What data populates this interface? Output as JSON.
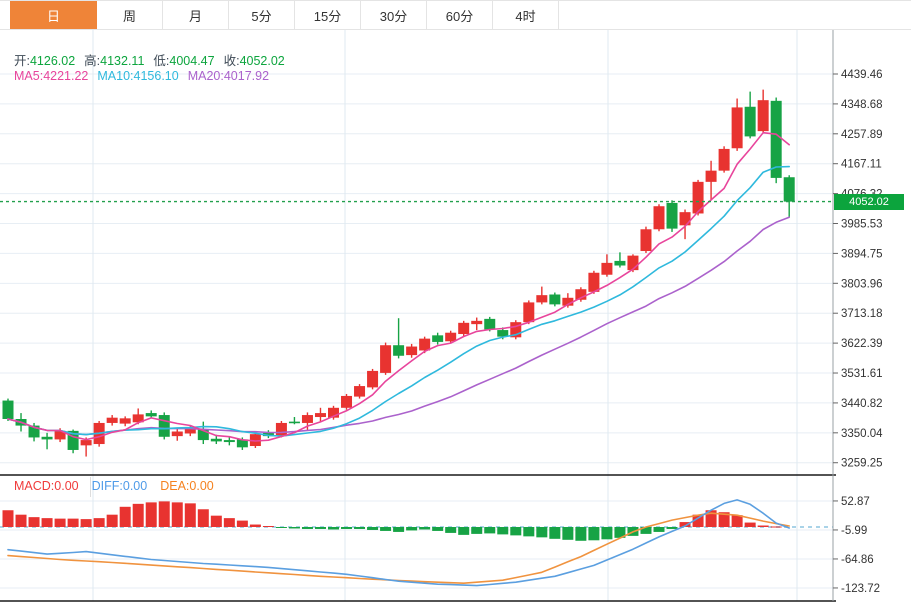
{
  "tabbar": {
    "tabs": [
      {
        "id": "day",
        "label": "日",
        "active": true
      },
      {
        "id": "week",
        "label": "周",
        "active": false
      },
      {
        "id": "month",
        "label": "月",
        "active": false
      },
      {
        "id": "5min",
        "label": "5分",
        "active": false
      },
      {
        "id": "15min",
        "label": "15分",
        "active": false
      },
      {
        "id": "30min",
        "label": "30分",
        "active": false
      },
      {
        "id": "60min",
        "label": "60分",
        "active": false
      },
      {
        "id": "4hour",
        "label": "4时",
        "active": false
      }
    ],
    "active_bg": "#ef8438"
  },
  "ohlc_info": {
    "label_color": "#3e4a56",
    "value_color": "#0da53e",
    "items": [
      {
        "label": "开:",
        "value": "4126.02"
      },
      {
        "label": "高:",
        "value": "4132.11"
      },
      {
        "label": "低:",
        "value": "4004.47"
      },
      {
        "label": "收:",
        "value": "4052.02"
      }
    ]
  },
  "ma_info": {
    "items": [
      {
        "label": "MA5:",
        "value": "4221.22",
        "color": "#e8459c"
      },
      {
        "label": "MA10:",
        "value": "4156.10",
        "color": "#2fb9dd"
      },
      {
        "label": "MA20:",
        "value": "4017.92",
        "color": "#ab62cc"
      }
    ]
  },
  "macd_info": {
    "items": [
      {
        "label": "MACD:",
        "value": "0.00",
        "color": "#f03b3b"
      },
      {
        "label": "DIFF:",
        "value": "0.00",
        "color": "#4f9be8"
      },
      {
        "label": "DEA:",
        "value": "0.00",
        "color": "#f5821f"
      }
    ]
  },
  "price_tag": {
    "value": "4052.02",
    "price": 4052.02,
    "bg": "#0ca43d"
  },
  "colors": {
    "up": "#e83330",
    "down": "#17a345",
    "ma5": "#e8459c",
    "ma10": "#2fb9dd",
    "ma20": "#ab62cc",
    "diff": "#5b9fe0",
    "dea": "#f0933f",
    "grid": "#e7eef4",
    "vgrid": "#dfe9f1",
    "zero_dotted": "#a9d3e8",
    "price_line": "#23a04d",
    "axis": "#9aa0a6",
    "tick_text": "#333333"
  },
  "chart_data": [
    {
      "type": "candlestick",
      "title": "daily-kline-main",
      "legend": [
        "MA5",
        "MA10",
        "MA20"
      ],
      "price_axis_ticks": [
        4439.46,
        4348.68,
        4257.89,
        4167.11,
        4076.32,
        3985.53,
        3894.75,
        3803.96,
        3713.18,
        3622.39,
        3531.61,
        3440.82,
        3350.04,
        3259.25
      ],
      "current_price": 4052.02,
      "last_candle": {
        "open": 4126.02,
        "high": 4132.11,
        "low": 4004.47,
        "close": 4052.02
      },
      "ma_values_at_cursor": {
        "MA5": 4221.22,
        "MA10": 4156.1,
        "MA20": 4017.92
      },
      "candles": [
        [
          3448,
          3454,
          3386,
          3392
        ],
        [
          3392,
          3410,
          3354,
          3372
        ],
        [
          3372,
          3380,
          3324,
          3336
        ],
        [
          3338,
          3350,
          3300,
          3330
        ],
        [
          3330,
          3364,
          3322,
          3356
        ],
        [
          3356,
          3360,
          3288,
          3298
        ],
        [
          3312,
          3336,
          3278,
          3328
        ],
        [
          3316,
          3386,
          3308,
          3380
        ],
        [
          3380,
          3404,
          3372,
          3396
        ],
        [
          3378,
          3400,
          3370,
          3394
        ],
        [
          3382,
          3424,
          3376,
          3406
        ],
        [
          3410,
          3418,
          3394,
          3400
        ],
        [
          3404,
          3412,
          3330,
          3338
        ],
        [
          3340,
          3362,
          3326,
          3354
        ],
        [
          3348,
          3370,
          3340,
          3364
        ],
        [
          3360,
          3384,
          3316,
          3328
        ],
        [
          3332,
          3344,
          3316,
          3324
        ],
        [
          3328,
          3340,
          3312,
          3322
        ],
        [
          3330,
          3336,
          3298,
          3306
        ],
        [
          3310,
          3352,
          3304,
          3346
        ],
        [
          3350,
          3358,
          3334,
          3340
        ],
        [
          3340,
          3386,
          3336,
          3380
        ],
        [
          3384,
          3398,
          3376,
          3382
        ],
        [
          3380,
          3412,
          3356,
          3404
        ],
        [
          3398,
          3426,
          3384,
          3410
        ],
        [
          3396,
          3432,
          3390,
          3426
        ],
        [
          3426,
          3468,
          3420,
          3462
        ],
        [
          3460,
          3498,
          3454,
          3492
        ],
        [
          3488,
          3544,
          3482,
          3538
        ],
        [
          3532,
          3624,
          3526,
          3616
        ],
        [
          3616,
          3698,
          3576,
          3584
        ],
        [
          3586,
          3620,
          3578,
          3612
        ],
        [
          3600,
          3642,
          3592,
          3636
        ],
        [
          3646,
          3654,
          3618,
          3626
        ],
        [
          3628,
          3660,
          3622,
          3654
        ],
        [
          3650,
          3690,
          3644,
          3684
        ],
        [
          3680,
          3700,
          3662,
          3690
        ],
        [
          3696,
          3702,
          3658,
          3664
        ],
        [
          3662,
          3670,
          3634,
          3642
        ],
        [
          3640,
          3692,
          3634,
          3686
        ],
        [
          3686,
          3752,
          3680,
          3746
        ],
        [
          3746,
          3794,
          3740,
          3768
        ],
        [
          3770,
          3776,
          3734,
          3740
        ],
        [
          3736,
          3774,
          3730,
          3760
        ],
        [
          3754,
          3792,
          3748,
          3786
        ],
        [
          3778,
          3842,
          3772,
          3836
        ],
        [
          3830,
          3892,
          3824,
          3866
        ],
        [
          3872,
          3898,
          3852,
          3858
        ],
        [
          3844,
          3892,
          3838,
          3888
        ],
        [
          3902,
          3976,
          3896,
          3968
        ],
        [
          3968,
          4044,
          3962,
          4038
        ],
        [
          4048,
          4056,
          3960,
          3970
        ],
        [
          3980,
          4028,
          3938,
          4020
        ],
        [
          4016,
          4118,
          4010,
          4112
        ],
        [
          4112,
          4176,
          4056,
          4146
        ],
        [
          4146,
          4220,
          4140,
          4212
        ],
        [
          4214,
          4365,
          4206,
          4338
        ],
        [
          4340,
          4386,
          4244,
          4250
        ],
        [
          4266,
          4392,
          4260,
          4360
        ],
        [
          4358,
          4368,
          4108,
          4124
        ],
        [
          4126.02,
          4132.11,
          4004.47,
          4052.02
        ]
      ]
    },
    {
      "type": "bar+line",
      "title": "macd-indicator",
      "axis_ticks": [
        52.87,
        -5.99,
        -64.86,
        -123.72
      ],
      "histogram": [
        34,
        25,
        20,
        18,
        17,
        17,
        16,
        18,
        25,
        41,
        47,
        50,
        52,
        50,
        48,
        36,
        23,
        18,
        13,
        5,
        2,
        -2,
        -3,
        -4,
        -4,
        -5,
        -4,
        -4,
        -6,
        -8,
        -10,
        -7,
        -5,
        -8,
        -12,
        -16,
        -14,
        -13,
        -15,
        -17,
        -19,
        -21,
        -24,
        -26,
        -28,
        -27,
        -25,
        -22,
        -18,
        -14,
        -10,
        -4,
        10,
        25,
        34,
        30,
        24,
        9,
        3,
        1,
        0
      ],
      "diff_points": [
        [
          1,
          -46
        ],
        [
          4,
          -55
        ],
        [
          7,
          -50
        ],
        [
          12,
          -66
        ],
        [
          16,
          -74
        ],
        [
          21,
          -82
        ],
        [
          27,
          -96
        ],
        [
          31,
          -110
        ],
        [
          34,
          -116
        ],
        [
          37,
          -119
        ],
        [
          40,
          -112
        ],
        [
          43,
          -100
        ],
        [
          46,
          -78
        ],
        [
          49,
          -45
        ],
        [
          51,
          -20
        ],
        [
          53,
          2
        ],
        [
          55,
          34
        ],
        [
          56,
          48
        ],
        [
          57,
          55
        ],
        [
          58,
          46
        ],
        [
          59,
          28
        ],
        [
          60,
          8
        ],
        [
          61,
          -2
        ]
      ],
      "dea_points": [
        [
          1,
          -58
        ],
        [
          5,
          -66
        ],
        [
          9,
          -72
        ],
        [
          13,
          -79
        ],
        [
          17,
          -86
        ],
        [
          21,
          -93
        ],
        [
          25,
          -100
        ],
        [
          29,
          -106
        ],
        [
          33,
          -111
        ],
        [
          36,
          -114
        ],
        [
          39,
          -108
        ],
        [
          42,
          -92
        ],
        [
          45,
          -60
        ],
        [
          47,
          -35
        ],
        [
          49,
          -10
        ],
        [
          50,
          0
        ],
        [
          52,
          14
        ],
        [
          54,
          24
        ],
        [
          55,
          28
        ],
        [
          57,
          24
        ],
        [
          59,
          12
        ],
        [
          61,
          2
        ]
      ]
    }
  ]
}
